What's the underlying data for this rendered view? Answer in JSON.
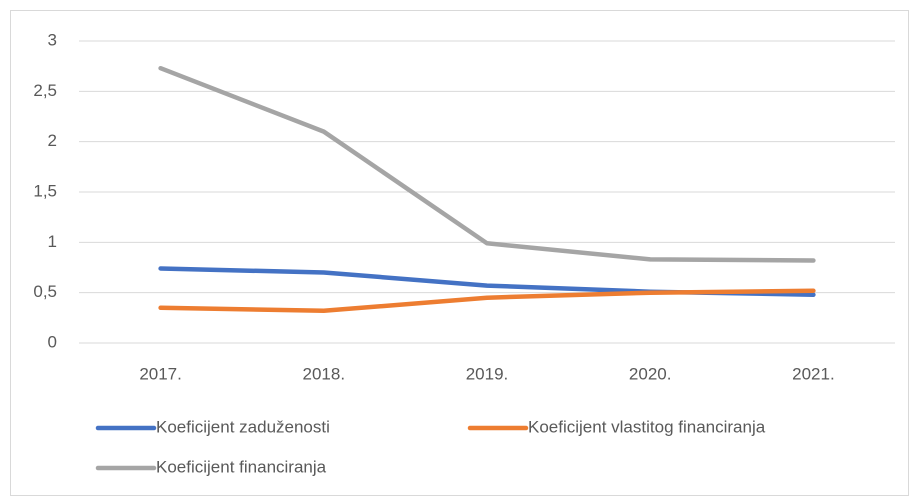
{
  "chart_data": {
    "type": "line",
    "categories": [
      "2017.",
      "2018.",
      "2019.",
      "2020.",
      "2021."
    ],
    "series": [
      {
        "name": "Koeficijent zaduženosti",
        "color": "#4472c4",
        "values": [
          0.74,
          0.7,
          0.57,
          0.51,
          0.48
        ]
      },
      {
        "name": "Koeficijent vlastitog financiranja",
        "color": "#ed7d31",
        "values": [
          0.35,
          0.32,
          0.45,
          0.5,
          0.52
        ]
      },
      {
        "name": "Koeficijent financiranja",
        "color": "#a5a5a5",
        "values": [
          2.73,
          2.1,
          0.99,
          0.83,
          0.82
        ]
      }
    ],
    "ylim": [
      0,
      3
    ],
    "yticks": [
      0,
      {
        "value": 0.5,
        "label": "0,5"
      },
      1,
      {
        "value": 1.5,
        "label": "1,5"
      },
      2,
      {
        "value": 2.5,
        "label": "2,5"
      },
      3
    ],
    "grid": true,
    "legend": "bottom"
  }
}
